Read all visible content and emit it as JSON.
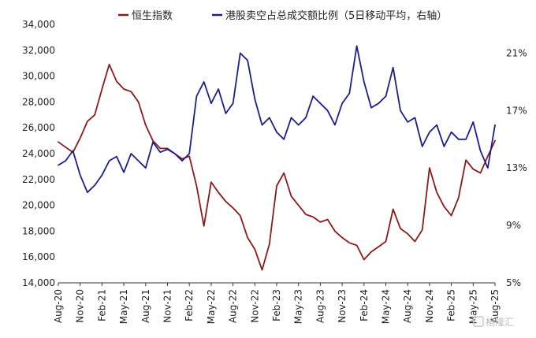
{
  "chart_data": {
    "type": "line",
    "legend_position": "top",
    "grid": false,
    "y_left": {
      "ylim": [
        14000,
        34000
      ],
      "ticks": [
        "14,000",
        "16,000",
        "18,000",
        "20,000",
        "22,000",
        "24,000",
        "26,000",
        "28,000",
        "30,000",
        "32,000",
        "34,000"
      ]
    },
    "y_right": {
      "ylim": [
        5,
        23
      ],
      "ticks": [
        "5%",
        "9%",
        "13%",
        "17%",
        "21%"
      ]
    },
    "x_ticks": [
      "Aug-20",
      "Nov-20",
      "Feb-21",
      "May-21",
      "Aug-21",
      "Nov-21",
      "Feb-22",
      "May-22",
      "Aug-22",
      "Nov-22",
      "Feb-23",
      "May-23",
      "Aug-23",
      "Nov-23",
      "Feb-24",
      "May-24",
      "Aug-24",
      "Nov-24",
      "Feb-25",
      "May-25",
      "Aug-25"
    ],
    "series": [
      {
        "name": "恒生指数",
        "axis": "left",
        "color": "#8B1A1A",
        "x": [
          0,
          1,
          2,
          3,
          4,
          5,
          6,
          7,
          8,
          9,
          10,
          11,
          12,
          13,
          14,
          15,
          16,
          17,
          18,
          19,
          20,
          21,
          22,
          23,
          24,
          25,
          26,
          27,
          28,
          29,
          30,
          31,
          32,
          33,
          34,
          35,
          36,
          37,
          38,
          39,
          40,
          41,
          42,
          43,
          44,
          45,
          46,
          47,
          48,
          49,
          50,
          51,
          52,
          53,
          54,
          55,
          56,
          57,
          58,
          59,
          60
        ],
        "values": [
          24900,
          24500,
          24100,
          25200,
          26500,
          27000,
          29000,
          30900,
          29600,
          29000,
          28800,
          28000,
          26200,
          25000,
          24400,
          24400,
          24000,
          23600,
          23800,
          21500,
          18400,
          21800,
          21000,
          20300,
          19800,
          19200,
          17500,
          16600,
          15000,
          17000,
          21500,
          22500,
          20700,
          20000,
          19300,
          19100,
          18700,
          18900,
          18000,
          17500,
          17100,
          16900,
          15800,
          16400,
          16800,
          17200,
          19700,
          18200,
          17800,
          17200,
          18100,
          22900,
          21000,
          19900,
          19200,
          20600,
          23500,
          22800,
          22500,
          23800,
          25000
        ]
      },
      {
        "name": "港股卖空占总成交额比例（5日移动平均，右轴）",
        "axis": "right",
        "color": "#1C1F8A",
        "x": [
          0,
          1,
          2,
          3,
          4,
          5,
          6,
          7,
          8,
          9,
          10,
          11,
          12,
          13,
          14,
          15,
          16,
          17,
          18,
          19,
          20,
          21,
          22,
          23,
          24,
          25,
          26,
          27,
          28,
          29,
          30,
          31,
          32,
          33,
          34,
          35,
          36,
          37,
          38,
          39,
          40,
          41,
          42,
          43,
          44,
          45,
          46,
          47,
          48,
          49,
          50,
          51,
          52,
          53,
          54,
          55,
          56,
          57,
          58,
          59,
          60
        ],
        "values": [
          13.2,
          13.5,
          14.2,
          12.5,
          11.3,
          11.8,
          12.5,
          13.5,
          13.8,
          12.7,
          14.0,
          13.5,
          13.0,
          14.8,
          14.1,
          14.3,
          14.0,
          13.5,
          14.0,
          18.0,
          19.0,
          17.5,
          18.5,
          16.8,
          17.5,
          21.0,
          20.5,
          17.8,
          16.0,
          16.5,
          15.5,
          15.0,
          16.5,
          16.0,
          16.5,
          18.0,
          17.5,
          17.0,
          16.0,
          17.5,
          18.2,
          21.5,
          19.0,
          17.2,
          17.5,
          18.0,
          20.0,
          17.0,
          16.2,
          16.5,
          14.5,
          15.5,
          16.0,
          14.5,
          15.5,
          15.0,
          15.0,
          16.2,
          14.2,
          13.0,
          16.0
        ]
      }
    ]
  },
  "watermark": "格隆汇"
}
